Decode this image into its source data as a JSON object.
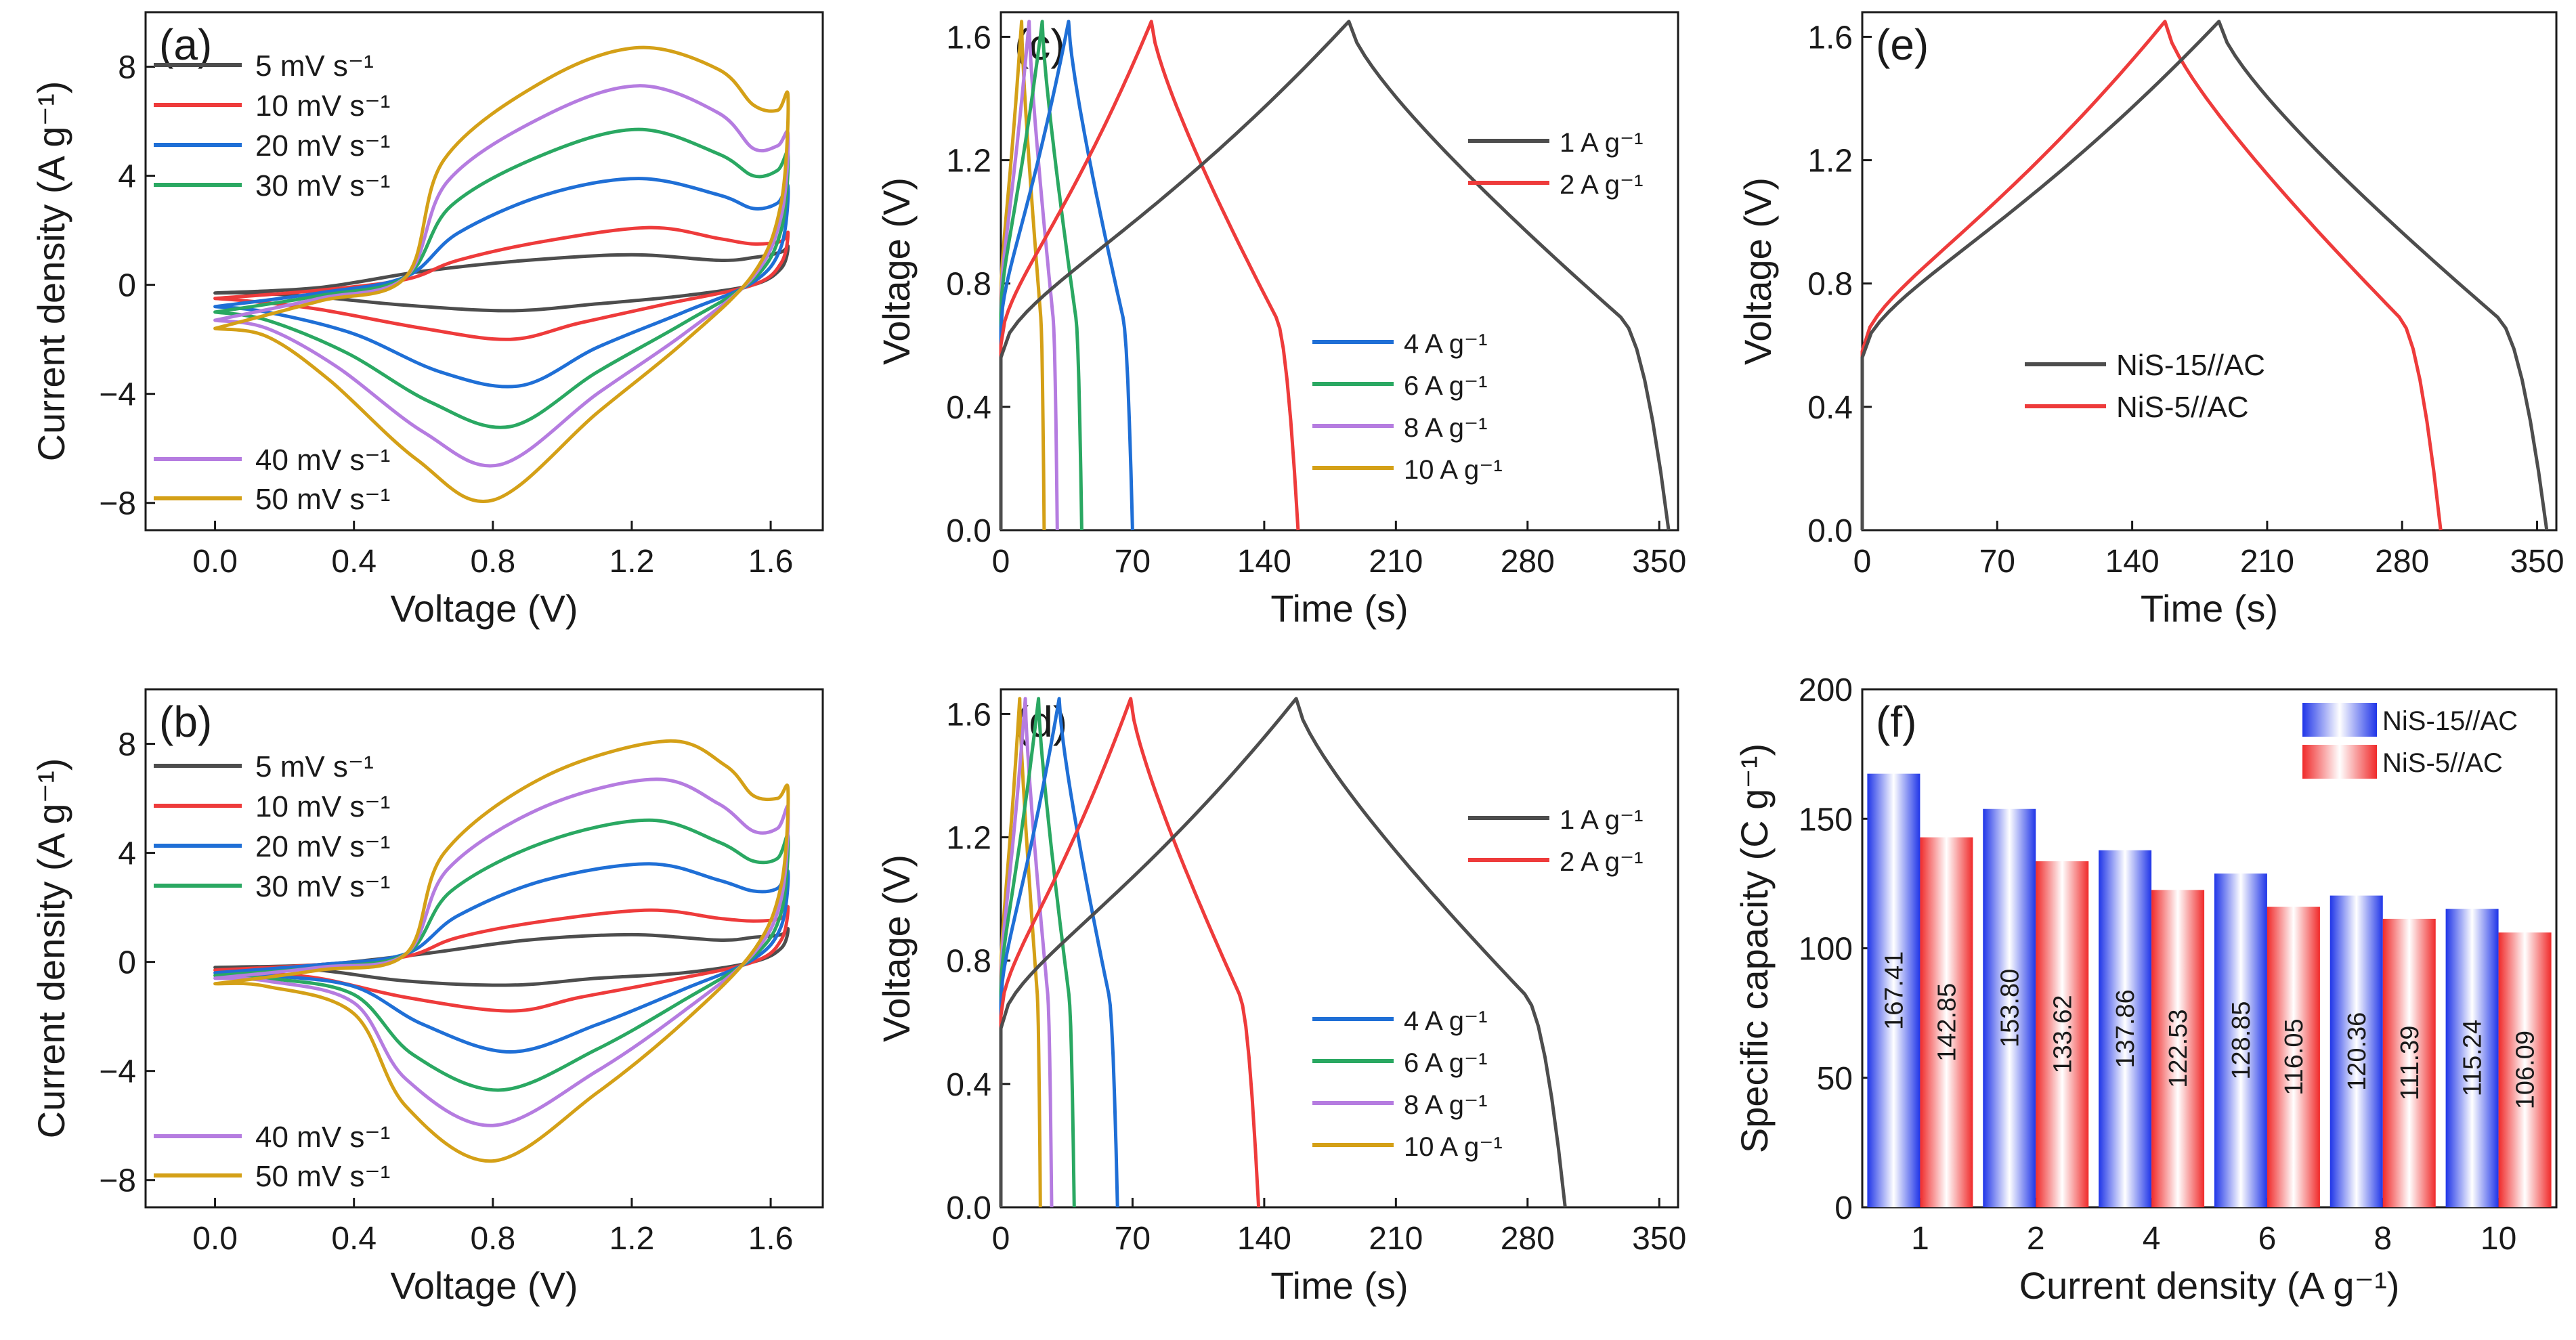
{
  "chart_data": [
    {
      "panel": "(a)",
      "type": "line",
      "xlabel": "Voltage (V)",
      "ylabel": "Current density (A g⁻¹)",
      "xlim": [
        -0.2,
        1.75
      ],
      "ylim": [
        -9,
        10
      ],
      "xticks": [
        0.0,
        0.4,
        0.8,
        1.2,
        1.6
      ],
      "xtick_labels": [
        "0.0",
        "0.4",
        "0.8",
        "1.2",
        "1.6"
      ],
      "yticks": [
        -8,
        -4,
        0,
        4,
        8
      ],
      "ytick_labels": [
        "−8",
        "−4",
        "0",
        "4",
        "8"
      ],
      "legend": [
        {
          "label": "5 mV s⁻¹",
          "color": "#4d4d4d"
        },
        {
          "label": "10 mV s⁻¹",
          "color": "#ee3b3b"
        },
        {
          "label": "20 mV s⁻¹",
          "color": "#1f6fd6"
        },
        {
          "label": "30 mV s⁻¹",
          "color": "#2aa862"
        },
        {
          "label": "40 mV s⁻¹",
          "color": "#b57ce0"
        },
        {
          "label": "50 mV s⁻¹",
          "color": "#d4a017"
        }
      ],
      "series": [
        {
          "name": "5 mV s⁻¹",
          "color": "#4d4d4d",
          "x": [
            0,
            0.3,
            0.6,
            0.9,
            1.2,
            1.45,
            1.55,
            1.63,
            1.65,
            1.63,
            1.55,
            1.35,
            1.1,
            0.85,
            0.55,
            0.3,
            0.1,
            0
          ],
          "y": [
            -0.3,
            -0.1,
            0.5,
            0.9,
            1.1,
            0.9,
            1.0,
            1.2,
            1.4,
            0.6,
            0,
            -0.4,
            -0.7,
            -0.95,
            -0.75,
            -0.45,
            -0.3,
            -0.3
          ]
        },
        {
          "name": "10 mV s⁻¹",
          "color": "#ee3b3b",
          "x": [
            0,
            0.3,
            0.55,
            0.7,
            0.95,
            1.25,
            1.45,
            1.55,
            1.63,
            1.65,
            1.63,
            1.55,
            1.3,
            1.05,
            0.85,
            0.6,
            0.3,
            0.1,
            0
          ],
          "y": [
            -0.5,
            -0.2,
            0.2,
            0.9,
            1.6,
            2.1,
            1.7,
            1.5,
            1.6,
            1.9,
            0.8,
            0,
            -0.7,
            -1.4,
            -2.0,
            -1.6,
            -0.9,
            -0.6,
            -0.5
          ]
        },
        {
          "name": "20 mV s⁻¹",
          "color": "#1f6fd6",
          "x": [
            0,
            0.3,
            0.55,
            0.7,
            0.95,
            1.22,
            1.45,
            1.55,
            1.62,
            1.65,
            1.63,
            1.55,
            1.35,
            1.1,
            0.88,
            0.65,
            0.4,
            0.15,
            0
          ],
          "y": [
            -0.8,
            -0.3,
            0.3,
            1.9,
            3.3,
            3.9,
            3.3,
            2.8,
            3.0,
            3.6,
            1.4,
            0.1,
            -1.0,
            -2.3,
            -3.7,
            -3.2,
            -1.8,
            -1.0,
            -0.8
          ]
        },
        {
          "name": "30 mV s⁻¹",
          "color": "#2aa862",
          "x": [
            0,
            0.3,
            0.55,
            0.68,
            0.95,
            1.22,
            1.45,
            1.55,
            1.62,
            1.65,
            1.63,
            1.55,
            1.35,
            1.1,
            0.85,
            0.62,
            0.38,
            0.15,
            0
          ],
          "y": [
            -1.0,
            -0.4,
            0.3,
            2.9,
            4.8,
            5.7,
            4.8,
            4.0,
            4.2,
            4.8,
            2.0,
            0.2,
            -1.4,
            -3.2,
            -5.2,
            -4.3,
            -2.5,
            -1.3,
            -1.0
          ]
        },
        {
          "name": "40 mV s⁻¹",
          "color": "#b57ce0",
          "x": [
            0,
            0.3,
            0.55,
            0.67,
            0.95,
            1.22,
            1.45,
            1.55,
            1.62,
            1.65,
            1.63,
            1.55,
            1.35,
            1.1,
            0.82,
            0.6,
            0.35,
            0.15,
            0
          ],
          "y": [
            -1.3,
            -0.5,
            0.3,
            3.8,
            6.2,
            7.3,
            6.3,
            5.0,
            5.1,
            5.5,
            2.5,
            0.3,
            -1.8,
            -4.0,
            -6.6,
            -5.4,
            -3.0,
            -1.6,
            -1.3
          ]
        },
        {
          "name": "50 mV s⁻¹",
          "color": "#d4a017",
          "x": [
            0,
            0.3,
            0.55,
            0.66,
            0.95,
            1.22,
            1.45,
            1.55,
            1.62,
            1.65,
            1.63,
            1.55,
            1.35,
            1.1,
            0.8,
            0.58,
            0.33,
            0.15,
            0
          ],
          "y": [
            -1.6,
            -0.6,
            0.3,
            4.6,
            7.5,
            8.7,
            7.9,
            6.6,
            6.4,
            6.9,
            3.0,
            0.4,
            -2.1,
            -4.7,
            -7.9,
            -6.4,
            -3.5,
            -1.9,
            -1.6
          ]
        }
      ]
    },
    {
      "panel": "(b)",
      "type": "line",
      "xlabel": "Voltage (V)",
      "ylabel": "Current density (A g⁻¹)",
      "xlim": [
        -0.2,
        1.75
      ],
      "ylim": [
        -9,
        10
      ],
      "xticks": [
        0.0,
        0.4,
        0.8,
        1.2,
        1.6
      ],
      "xtick_labels": [
        "0.0",
        "0.4",
        "0.8",
        "1.2",
        "1.6"
      ],
      "yticks": [
        -8,
        -4,
        0,
        4,
        8
      ],
      "ytick_labels": [
        "−8",
        "−4",
        "0",
        "4",
        "8"
      ],
      "legend": [
        {
          "label": "5 mV s⁻¹",
          "color": "#4d4d4d"
        },
        {
          "label": "10 mV s⁻¹",
          "color": "#ee3b3b"
        },
        {
          "label": "20 mV s⁻¹",
          "color": "#1f6fd6"
        },
        {
          "label": "30 mV s⁻¹",
          "color": "#2aa862"
        },
        {
          "label": "40 mV s⁻¹",
          "color": "#b57ce0"
        },
        {
          "label": "50 mV s⁻¹",
          "color": "#d4a017"
        }
      ],
      "series": [
        {
          "name": "5 mV s⁻¹",
          "color": "#4d4d4d",
          "x": [
            0,
            0.3,
            0.6,
            0.9,
            1.2,
            1.45,
            1.55,
            1.63,
            1.65,
            1.63,
            1.55,
            1.35,
            1.1,
            0.85,
            0.55,
            0.3,
            0.1,
            0
          ],
          "y": [
            -0.2,
            -0.1,
            0.3,
            0.8,
            1.0,
            0.8,
            0.9,
            1.0,
            1.2,
            0.5,
            0,
            -0.4,
            -0.6,
            -0.85,
            -0.7,
            -0.3,
            -0.2,
            -0.2
          ]
        },
        {
          "name": "10 mV s⁻¹",
          "color": "#ee3b3b",
          "x": [
            0,
            0.3,
            0.55,
            0.7,
            0.95,
            1.25,
            1.45,
            1.55,
            1.63,
            1.65,
            1.63,
            1.55,
            1.3,
            1.05,
            0.85,
            0.55,
            0.3,
            0.1,
            0
          ],
          "y": [
            -0.3,
            -0.1,
            0.2,
            0.9,
            1.5,
            1.9,
            1.6,
            1.5,
            1.6,
            2.0,
            0.8,
            0,
            -0.7,
            -1.3,
            -1.8,
            -1.3,
            -0.6,
            -0.4,
            -0.3
          ]
        },
        {
          "name": "20 mV s⁻¹",
          "color": "#1f6fd6",
          "x": [
            0,
            0.3,
            0.55,
            0.7,
            0.95,
            1.25,
            1.45,
            1.55,
            1.62,
            1.65,
            1.63,
            1.55,
            1.35,
            1.1,
            0.85,
            0.6,
            0.4,
            0.15,
            0
          ],
          "y": [
            -0.4,
            -0.1,
            0.3,
            1.7,
            3.0,
            3.6,
            3.0,
            2.6,
            2.7,
            3.3,
            1.3,
            0.1,
            -1.0,
            -2.3,
            -3.3,
            -2.3,
            -0.9,
            -0.5,
            -0.4
          ]
        },
        {
          "name": "30 mV s⁻¹",
          "color": "#2aa862",
          "x": [
            0,
            0.3,
            0.55,
            0.68,
            0.95,
            1.25,
            1.45,
            1.55,
            1.62,
            1.65,
            1.63,
            1.55,
            1.35,
            1.1,
            0.82,
            0.57,
            0.4,
            0.15,
            0
          ],
          "y": [
            -0.5,
            -0.2,
            0.3,
            2.6,
            4.4,
            5.2,
            4.4,
            3.7,
            3.8,
            4.6,
            1.8,
            0.2,
            -1.4,
            -3.2,
            -4.7,
            -3.4,
            -1.2,
            -0.6,
            -0.5
          ]
        },
        {
          "name": "40 mV s⁻¹",
          "color": "#b57ce0",
          "x": [
            0,
            0.3,
            0.55,
            0.67,
            0.95,
            1.27,
            1.45,
            1.55,
            1.62,
            1.65,
            1.63,
            1.55,
            1.35,
            1.1,
            0.8,
            0.55,
            0.4,
            0.15,
            0
          ],
          "y": [
            -0.6,
            -0.2,
            0.3,
            3.4,
            5.7,
            6.7,
            5.8,
            4.8,
            4.9,
            5.6,
            2.3,
            0.3,
            -1.8,
            -4.0,
            -6.0,
            -4.3,
            -1.5,
            -0.7,
            -0.6
          ]
        },
        {
          "name": "50 mV s⁻¹",
          "color": "#d4a017",
          "x": [
            0,
            0.3,
            0.55,
            0.66,
            0.95,
            1.3,
            1.47,
            1.55,
            1.62,
            1.65,
            1.63,
            1.55,
            1.35,
            1.1,
            0.8,
            0.55,
            0.4,
            0.15,
            0
          ],
          "y": [
            -0.8,
            -0.3,
            0.3,
            4.0,
            6.8,
            8.1,
            7.2,
            6.1,
            6.0,
            6.3,
            2.8,
            0.4,
            -2.2,
            -4.8,
            -7.3,
            -5.3,
            -1.9,
            -0.9,
            -0.8
          ]
        }
      ]
    },
    {
      "panel": "(c)",
      "type": "line",
      "xlabel": "Time (s)",
      "ylabel": "Voltage (V)",
      "xlim": [
        0,
        360
      ],
      "ylim": [
        0,
        1.68
      ],
      "xticks": [
        0,
        70,
        140,
        210,
        280,
        350
      ],
      "xtick_labels": [
        "0",
        "70",
        "140",
        "210",
        "280",
        "350"
      ],
      "yticks": [
        0.0,
        0.4,
        0.8,
        1.2,
        1.6
      ],
      "ytick_labels": [
        "0.0",
        "0.4",
        "0.8",
        "1.2",
        "1.6"
      ],
      "legend": [
        {
          "label": "1 A g⁻¹",
          "color": "#4d4d4d"
        },
        {
          "label": "2 A g⁻¹",
          "color": "#ee3b3b"
        },
        {
          "label": "4 A g⁻¹",
          "color": "#1f6fd6"
        },
        {
          "label": "6 A g⁻¹",
          "color": "#2aa862"
        },
        {
          "label": "8 A g⁻¹",
          "color": "#b57ce0"
        },
        {
          "label": "10 A g⁻¹",
          "color": "#d4a017"
        }
      ],
      "series": [
        {
          "name": "1 A g⁻¹",
          "color": "#4d4d4d",
          "tc": 185,
          "td": 355,
          "v0": 0.56
        },
        {
          "name": "2 A g⁻¹",
          "color": "#ee3b3b",
          "tc": 80,
          "td": 158,
          "v0": 0.6
        },
        {
          "name": "4 A g⁻¹",
          "color": "#1f6fd6",
          "tc": 36,
          "td": 70,
          "v0": 0.65
        },
        {
          "name": "6 A g⁻¹",
          "color": "#2aa862",
          "tc": 22,
          "td": 43,
          "v0": 0.7
        },
        {
          "name": "8 A g⁻¹",
          "color": "#b57ce0",
          "tc": 15,
          "td": 30,
          "v0": 0.72
        },
        {
          "name": "10 A g⁻¹",
          "color": "#d4a017",
          "tc": 11,
          "td": 23,
          "v0": 0.75
        }
      ]
    },
    {
      "panel": "(d)",
      "type": "line",
      "xlabel": "Time (s)",
      "ylabel": "Voltage (V)",
      "xlim": [
        0,
        360
      ],
      "ylim": [
        0,
        1.68
      ],
      "xticks": [
        0,
        70,
        140,
        210,
        280,
        350
      ],
      "xtick_labels": [
        "0",
        "70",
        "140",
        "210",
        "280",
        "350"
      ],
      "yticks": [
        0.0,
        0.4,
        0.8,
        1.2,
        1.6
      ],
      "ytick_labels": [
        "0.0",
        "0.4",
        "0.8",
        "1.2",
        "1.6"
      ],
      "legend": [
        {
          "label": "1 A g⁻¹",
          "color": "#4d4d4d"
        },
        {
          "label": "2 A g⁻¹",
          "color": "#ee3b3b"
        },
        {
          "label": "4 A g⁻¹",
          "color": "#1f6fd6"
        },
        {
          "label": "6 A g⁻¹",
          "color": "#2aa862"
        },
        {
          "label": "8 A g⁻¹",
          "color": "#b57ce0"
        },
        {
          "label": "10 A g⁻¹",
          "color": "#d4a017"
        }
      ],
      "series": [
        {
          "name": "1 A g⁻¹",
          "color": "#4d4d4d",
          "tc": 157,
          "td": 300,
          "v0": 0.58
        },
        {
          "name": "2 A g⁻¹",
          "color": "#ee3b3b",
          "tc": 69,
          "td": 137,
          "v0": 0.62
        },
        {
          "name": "4 A g⁻¹",
          "color": "#1f6fd6",
          "tc": 31,
          "td": 62,
          "v0": 0.66
        },
        {
          "name": "6 A g⁻¹",
          "color": "#2aa862",
          "tc": 20,
          "td": 39,
          "v0": 0.7
        },
        {
          "name": "8 A g⁻¹",
          "color": "#b57ce0",
          "tc": 13,
          "td": 27,
          "v0": 0.72
        },
        {
          "name": "10 A g⁻¹",
          "color": "#d4a017",
          "tc": 10,
          "td": 21,
          "v0": 0.75
        }
      ]
    },
    {
      "panel": "(e)",
      "type": "line",
      "xlabel": "Time (s)",
      "ylabel": "Voltage (V)",
      "xlim": [
        0,
        360
      ],
      "ylim": [
        0,
        1.68
      ],
      "xticks": [
        0,
        70,
        140,
        210,
        280,
        350
      ],
      "xtick_labels": [
        "0",
        "70",
        "140",
        "210",
        "280",
        "350"
      ],
      "yticks": [
        0.0,
        0.4,
        0.8,
        1.2,
        1.6
      ],
      "ytick_labels": [
        "0.0",
        "0.4",
        "0.8",
        "1.2",
        "1.6"
      ],
      "legend": [
        {
          "label": "NiS-15//AC",
          "color": "#4d4d4d"
        },
        {
          "label": "NiS-5//AC",
          "color": "#ee3b3b"
        }
      ],
      "series": [
        {
          "name": "NiS-15//AC",
          "color": "#4d4d4d",
          "tc": 185,
          "td": 355,
          "v0": 0.56
        },
        {
          "name": "NiS-5//AC",
          "color": "#ee3b3b",
          "tc": 157,
          "td": 300,
          "v0": 0.58
        }
      ]
    },
    {
      "panel": "(f)",
      "type": "bar",
      "xlabel": "Current density (A g⁻¹)",
      "ylabel": "Specific capacity (C g⁻¹)",
      "ylim": [
        0,
        200
      ],
      "yticks": [
        0,
        50,
        100,
        150,
        200
      ],
      "ytick_labels": [
        "0",
        "50",
        "100",
        "150",
        "200"
      ],
      "categories": [
        "1",
        "2",
        "4",
        "6",
        "8",
        "10"
      ],
      "series": [
        {
          "name": "NiS-15//AC",
          "color": "#2b3ff0",
          "values": [
            167.41,
            153.8,
            137.86,
            128.85,
            120.36,
            115.24
          ],
          "labels": [
            "167.41",
            "153.80",
            "137.86",
            "128.85",
            "120.36",
            "115.24"
          ]
        },
        {
          "name": "NiS-5//AC",
          "color": "#f03b3b",
          "values": [
            142.85,
            133.62,
            122.53,
            116.05,
            111.39,
            106.09
          ],
          "labels": [
            "142.85",
            "133.62",
            "122.53",
            "116.05",
            "111.39",
            "106.09"
          ]
        }
      ]
    }
  ]
}
